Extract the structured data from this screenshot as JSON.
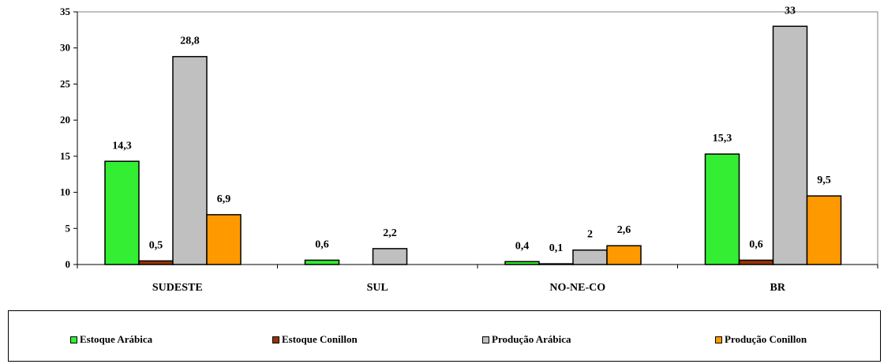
{
  "chart_data": {
    "type": "bar",
    "categories": [
      "SUDESTE",
      "SUL",
      "NO-NE-CO",
      "BR"
    ],
    "series": [
      {
        "name": "Estoque Arábica",
        "color": "#33ee33",
        "values": [
          14.3,
          0.6,
          0.4,
          15.3
        ],
        "labels": [
          "14,3",
          "0,6",
          "0,4",
          "15,3"
        ]
      },
      {
        "name": "Estoque Conillon",
        "color": "#993300",
        "values": [
          0.5,
          null,
          0.1,
          0.6
        ],
        "labels": [
          "0,5",
          "",
          "0,1",
          "0,6"
        ]
      },
      {
        "name": "Produção Arábica",
        "color": "#c0c0c0",
        "values": [
          28.8,
          2.2,
          2,
          33
        ],
        "labels": [
          "28,8",
          "2,2",
          "2",
          "33"
        ]
      },
      {
        "name": "Produção Conillon",
        "color": "#ff9900",
        "values": [
          6.9,
          null,
          2.6,
          9.5
        ],
        "labels": [
          "6,9",
          "",
          "2,6",
          "9,5"
        ]
      }
    ],
    "yticks": [
      0,
      5,
      10,
      15,
      20,
      25,
      30,
      35
    ],
    "ylim": [
      0,
      35
    ],
    "grid": false,
    "legend_position": "bottom",
    "title": "",
    "xlabel": "",
    "ylabel": ""
  }
}
